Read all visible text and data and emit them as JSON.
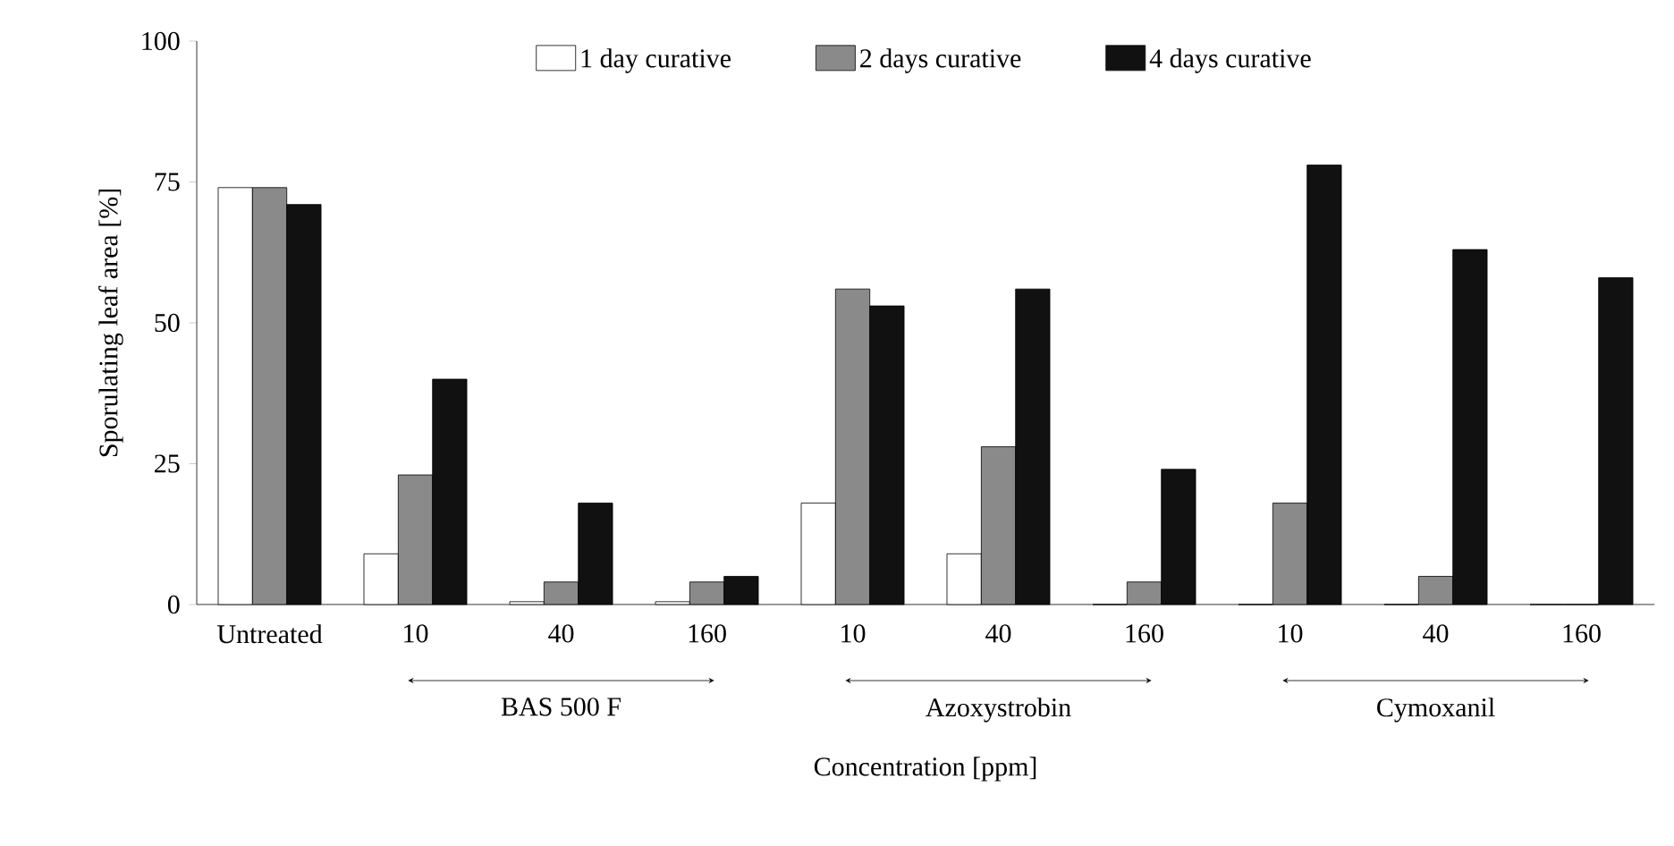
{
  "chart_data": {
    "type": "bar",
    "categories": [
      "Untreated",
      "10",
      "40",
      "160",
      "10",
      "40",
      "160",
      "10",
      "40",
      "160"
    ],
    "series": [
      {
        "name": "1 day  curative",
        "color": "#ffffff",
        "values": [
          74,
          9,
          0.5,
          0.5,
          18,
          9,
          0,
          0,
          0,
          0
        ]
      },
      {
        "name": "2 days  curative",
        "color": "#8a8a8a",
        "values": [
          74,
          23,
          4,
          4,
          56,
          28,
          4,
          18,
          5,
          0
        ]
      },
      {
        "name": "4 days  curative",
        "color": "#111111",
        "values": [
          71,
          40,
          18,
          5,
          53,
          56,
          24,
          78,
          63,
          58
        ]
      }
    ],
    "ylabel": "Sporulating leaf area [%]",
    "xlabel": "Concentration [ppm]",
    "ylim": [
      0,
      100
    ],
    "yticks": [
      0,
      25,
      50,
      75,
      100
    ],
    "annotations": [
      "BAS 500 F",
      "Azoxystrobin",
      "Cymoxanil"
    ],
    "legend": "top",
    "grid": false
  }
}
